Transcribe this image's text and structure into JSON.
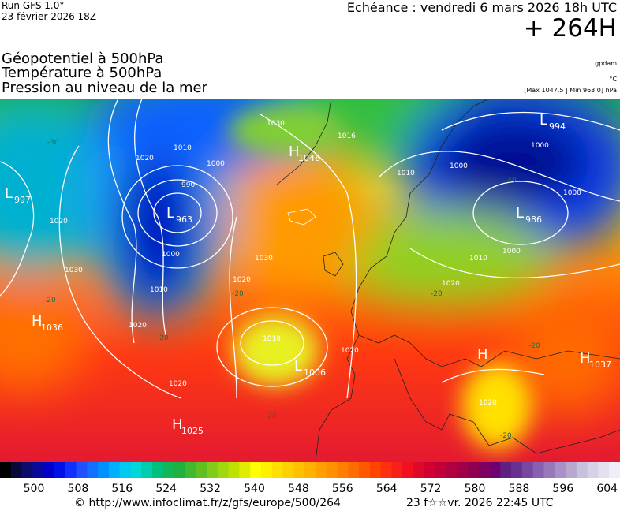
{
  "header": {
    "run": "Run GFS 1.0°",
    "run_date": "23 février 2026 18Z",
    "valid": "Echéance : vendredi 6 mars 2026 18h UTC",
    "lead": "+ 264H",
    "fields": [
      "Géopotentiel à 500hPa",
      "Température à 500hPa",
      "Pression au niveau de la mer"
    ],
    "unit_geopotential": "gpdam",
    "unit_temperature": "°C",
    "pressure_range": "[Max 1047.5 | Min 963.0] hPa"
  },
  "centers": [
    {
      "letter": "L",
      "value": "997"
    },
    {
      "letter": "L",
      "value": "963"
    },
    {
      "letter": "H",
      "value": "1046"
    },
    {
      "letter": "L",
      "value": "994"
    },
    {
      "letter": "L",
      "value": "986"
    },
    {
      "letter": "H",
      "value": "1036"
    },
    {
      "letter": "L",
      "value": "1006"
    },
    {
      "letter": "H"
    },
    {
      "letter": "H",
      "value": "1037"
    },
    {
      "letter": "H",
      "value": "1025"
    }
  ],
  "isobar_labels": [
    "1020",
    "1010",
    "1000",
    "990",
    "1000",
    "1010",
    "1020",
    "1030",
    "1020",
    "1030",
    "1020",
    "1010",
    "1020",
    "1020",
    "1030",
    "1016",
    "1010",
    "1000",
    "1000",
    "1000",
    "1000",
    "1010",
    "1020",
    "1020"
  ],
  "temperature_labels": [
    "-30",
    "-20",
    "-20",
    "-20",
    "-20",
    "-20",
    "-20",
    "-40",
    "-20"
  ],
  "colorbar": {
    "labels": [
      500,
      508,
      516,
      524,
      532,
      540,
      548,
      556,
      564,
      572,
      580,
      588,
      596,
      604
    ]
  },
  "footer": {
    "url": "© http://www.infoclimat.fr/z/gfs/europe/500/264",
    "timestamp": "23 f☆☆vr. 2026 22:45 UTC"
  }
}
